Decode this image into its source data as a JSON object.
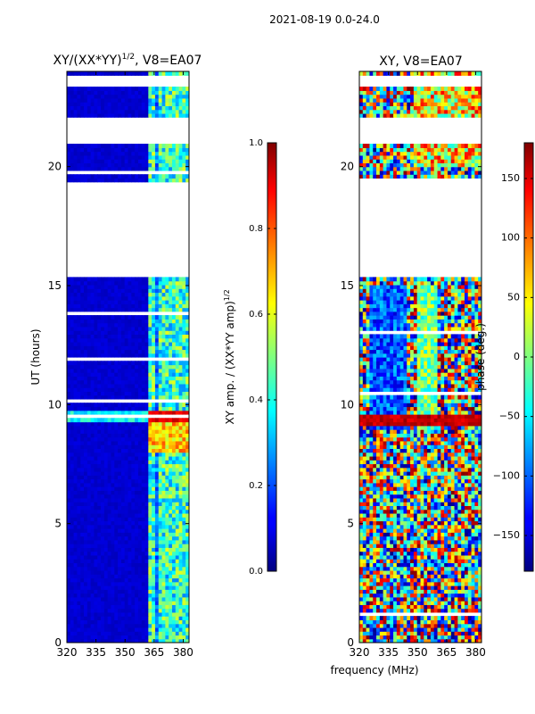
{
  "figure": {
    "suptitle": "2021-08-19 0.0-24.0",
    "xlabel": "frequency (MHz)"
  },
  "chart_data": [
    {
      "type": "heatmap",
      "title_base": "XY/(XX*YY)",
      "title_exp": "1/2",
      "title_tail": ", V8=EA07",
      "xlabel": "frequency (MHz)",
      "ylabel": "UT (hours)",
      "xlim": [
        320,
        383
      ],
      "ylim": [
        0,
        24
      ],
      "xticks": [
        320,
        335,
        350,
        365,
        380
      ],
      "yticks": [
        0,
        5,
        10,
        15,
        20
      ],
      "colorbar": {
        "label_base": "XY amp. / (XX*YY amp)",
        "label_exp": "1/2",
        "min": 0.0,
        "max": 1.0,
        "ticks": [
          "0.0",
          "0.2",
          "0.4",
          "0.6",
          "0.8",
          "1.0"
        ]
      },
      "data_gaps_hours": [
        [
          21.0,
          22.0
        ],
        [
          17.5,
          19.3
        ],
        [
          15.3,
          18.3
        ],
        [
          23.3,
          23.8
        ]
      ],
      "bright_band_hours": [
        9.3,
        9.8
      ],
      "notes": "Amplitude mostly low (~0.05) at 320-362 MHz; moderate (0.3-0.6) near 362-383 MHz; peak ~0.9 near 9.5 h."
    },
    {
      "type": "heatmap",
      "title": "XY, V8=EA07",
      "xlabel": "frequency (MHz)",
      "xlim": [
        320,
        383
      ],
      "ylim": [
        0,
        24
      ],
      "xticks": [
        320,
        335,
        350,
        365,
        380
      ],
      "yticks": [
        0,
        5,
        10,
        15,
        20
      ],
      "colorbar": {
        "label": "phase (deg.)",
        "min": -180,
        "max": 180,
        "ticks": [
          "150",
          "100",
          "50",
          "0",
          "−50",
          "−100",
          "−150"
        ]
      },
      "data_gaps_hours": [
        [
          21.0,
          22.0
        ],
        [
          17.5,
          19.3
        ],
        [
          15.3,
          18.3
        ],
        [
          23.3,
          23.8
        ]
      ],
      "notes": "Phase noisy across band; negative (blue) region 325-345 MHz from 9-15 h; positive (red) band near 9.3 h."
    }
  ]
}
